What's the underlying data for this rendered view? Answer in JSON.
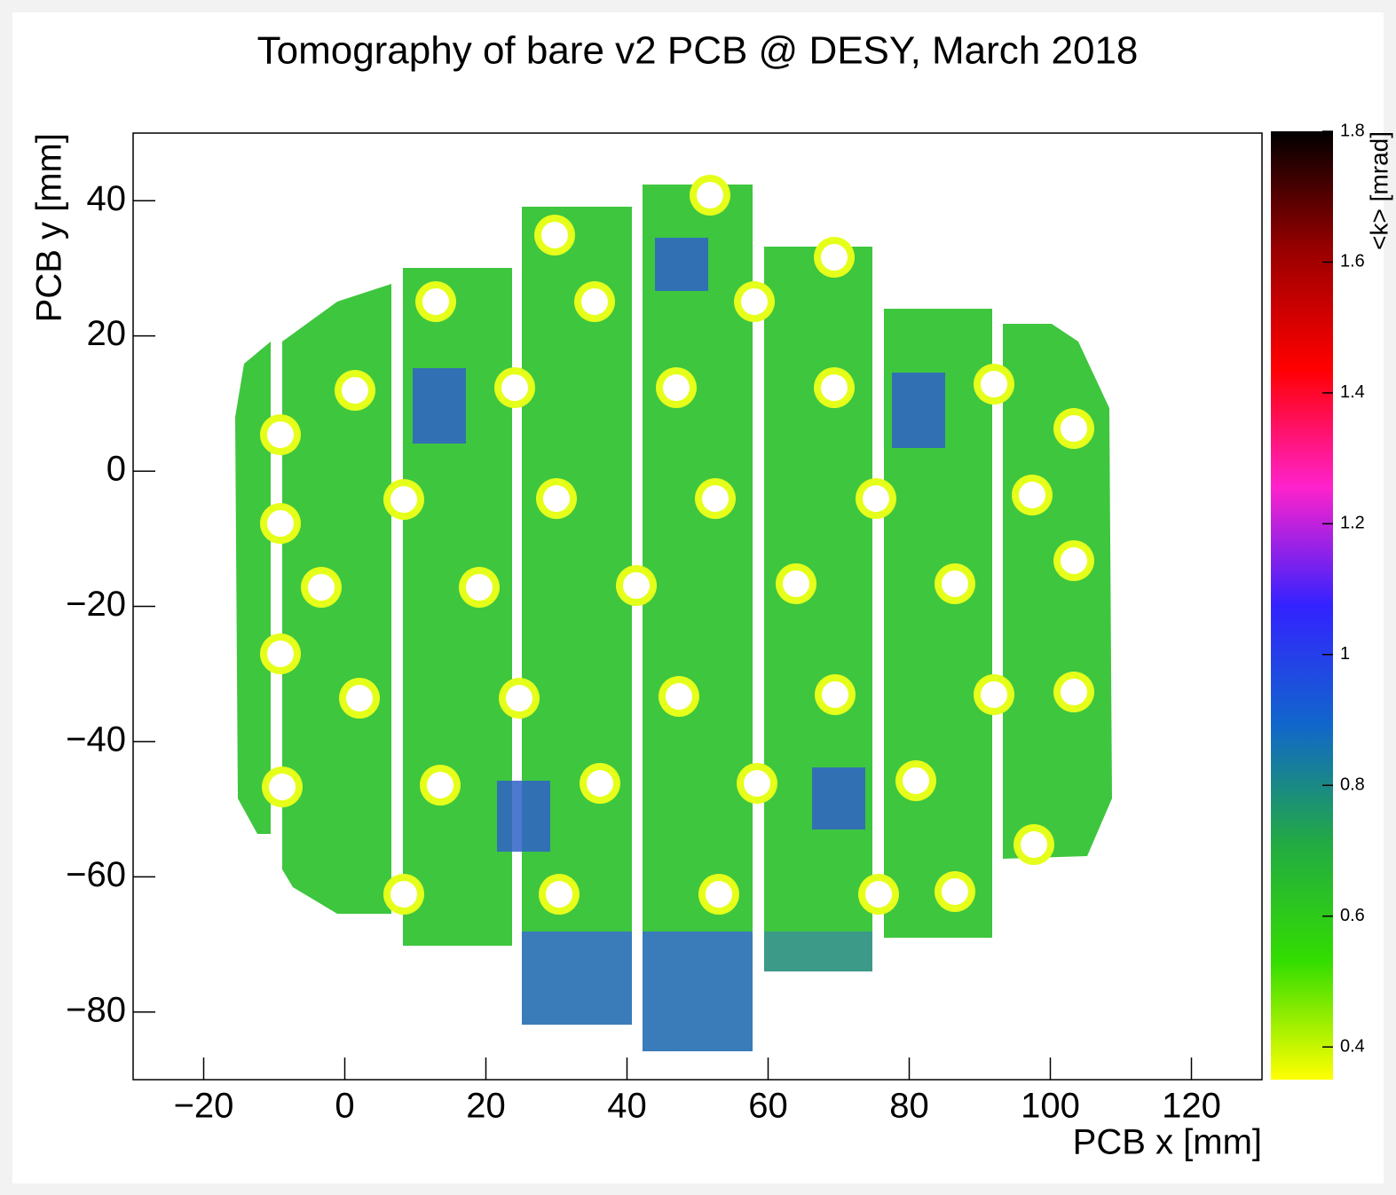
{
  "chart_data": {
    "type": "heatmap",
    "title": "Tomography of bare v2 PCB @ DESY, March 2018",
    "xlabel": "PCB x [mm]",
    "ylabel": "PCB y [mm]",
    "colorbar_label": "<k> [mrad]",
    "xlim": [
      -30,
      130
    ],
    "xticks": [
      {
        "value": -20,
        "label": "−20"
      },
      0,
      20,
      40,
      60,
      80,
      100,
      120
    ],
    "ylim": [
      -90,
      50
    ],
    "yticks": [
      {
        "value": -80,
        "label": "−80"
      },
      {
        "value": -60,
        "label": "−60"
      },
      {
        "value": -40,
        "label": "−40"
      },
      {
        "value": -20,
        "label": "−20"
      },
      0,
      20,
      40
    ],
    "zlim": [
      0.35,
      1.8
    ],
    "zticks": [
      0.4,
      0.6,
      0.8,
      1,
      1.2,
      1.4,
      1.6,
      1.8
    ],
    "colormap": [
      "#ffff00",
      "#33dd00",
      "#22aa44",
      "#1166cc",
      "#3322ff",
      "#ff22cc",
      "#ff0000",
      "#990000",
      "#000000"
    ]
  }
}
